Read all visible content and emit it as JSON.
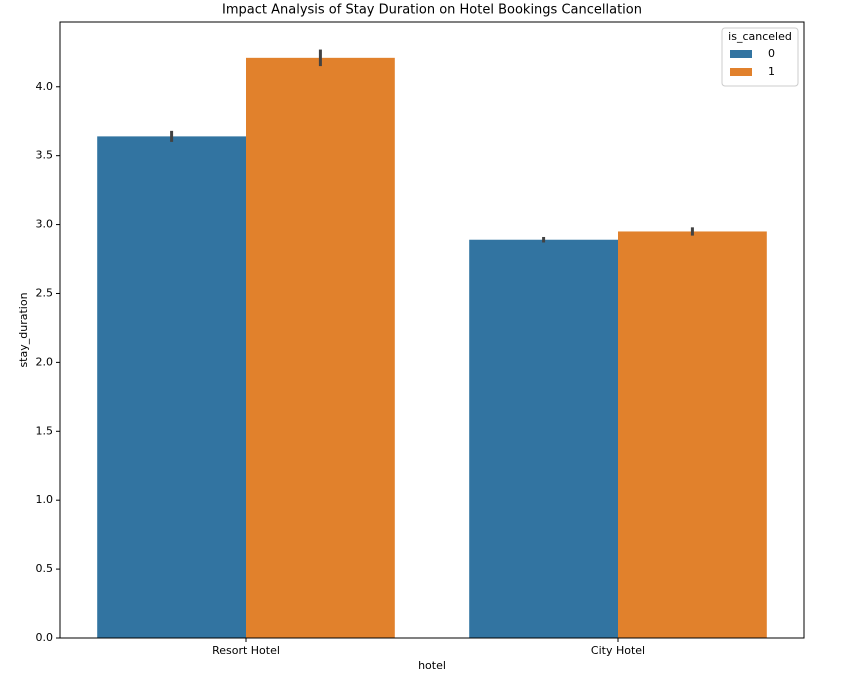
{
  "chart_data": {
    "type": "bar",
    "title": "Impact Analysis of Stay Duration on Hotel Bookings Cancellation",
    "x_label": "hotel",
    "y_label": "stay_duration",
    "categories": [
      "Resort Hotel",
      "City Hotel"
    ],
    "legend_title": "is_canceled",
    "legend_position": "upper right",
    "series": [
      {
        "name": "0",
        "color": "#3274a1",
        "values": [
          3.64,
          2.89
        ],
        "errors": [
          0.04,
          0.02
        ]
      },
      {
        "name": "1",
        "color": "#e1812c",
        "values": [
          4.21,
          2.95
        ],
        "errors": [
          0.06,
          0.03
        ]
      }
    ],
    "ylim": [
      0,
      4.47
    ],
    "yticks": [
      {
        "value": 0,
        "label": "0.0"
      },
      {
        "value": 0.5,
        "label": "0.5"
      },
      {
        "value": 1,
        "label": "1.0"
      },
      {
        "value": 1.5,
        "label": "1.5"
      },
      {
        "value": 2,
        "label": "2.0"
      },
      {
        "value": 2.5,
        "label": "2.5"
      },
      {
        "value": 3,
        "label": "3.0"
      },
      {
        "value": 3.5,
        "label": "3.5"
      },
      {
        "value": 4,
        "label": "4.0"
      }
    ],
    "grid": false
  }
}
